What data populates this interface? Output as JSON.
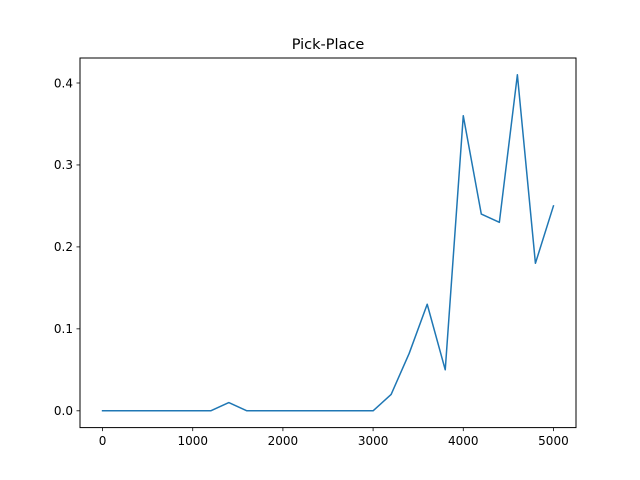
{
  "chart_data": {
    "type": "line",
    "title": "Pick-Place",
    "xlabel": "",
    "ylabel": "",
    "xlim": [
      -250,
      5250
    ],
    "ylim": [
      -0.0205,
      0.4305
    ],
    "xticks": [
      0,
      1000,
      2000,
      3000,
      4000,
      5000
    ],
    "xtick_labels": [
      "0",
      "1000",
      "2000",
      "3000",
      "4000",
      "5000"
    ],
    "yticks": [
      0.0,
      0.1,
      0.2,
      0.3,
      0.4
    ],
    "ytick_labels": [
      "0.0",
      "0.1",
      "0.2",
      "0.3",
      "0.4"
    ],
    "grid": false,
    "series": [
      {
        "color": "#1f77b4",
        "x": [
          0,
          200,
          400,
          600,
          800,
          1000,
          1200,
          1400,
          1600,
          1800,
          2000,
          2200,
          2400,
          2600,
          2800,
          3000,
          3200,
          3400,
          3600,
          3800,
          4000,
          4200,
          4400,
          4600,
          4800,
          5000
        ],
        "y": [
          0,
          0,
          0,
          0,
          0,
          0,
          0,
          0.01,
          0,
          0,
          0,
          0,
          0,
          0,
          0,
          0,
          0.02,
          0.07,
          0.13,
          0.05,
          0.36,
          0.24,
          0.23,
          0.41,
          0.18,
          0.25
        ]
      }
    ]
  }
}
